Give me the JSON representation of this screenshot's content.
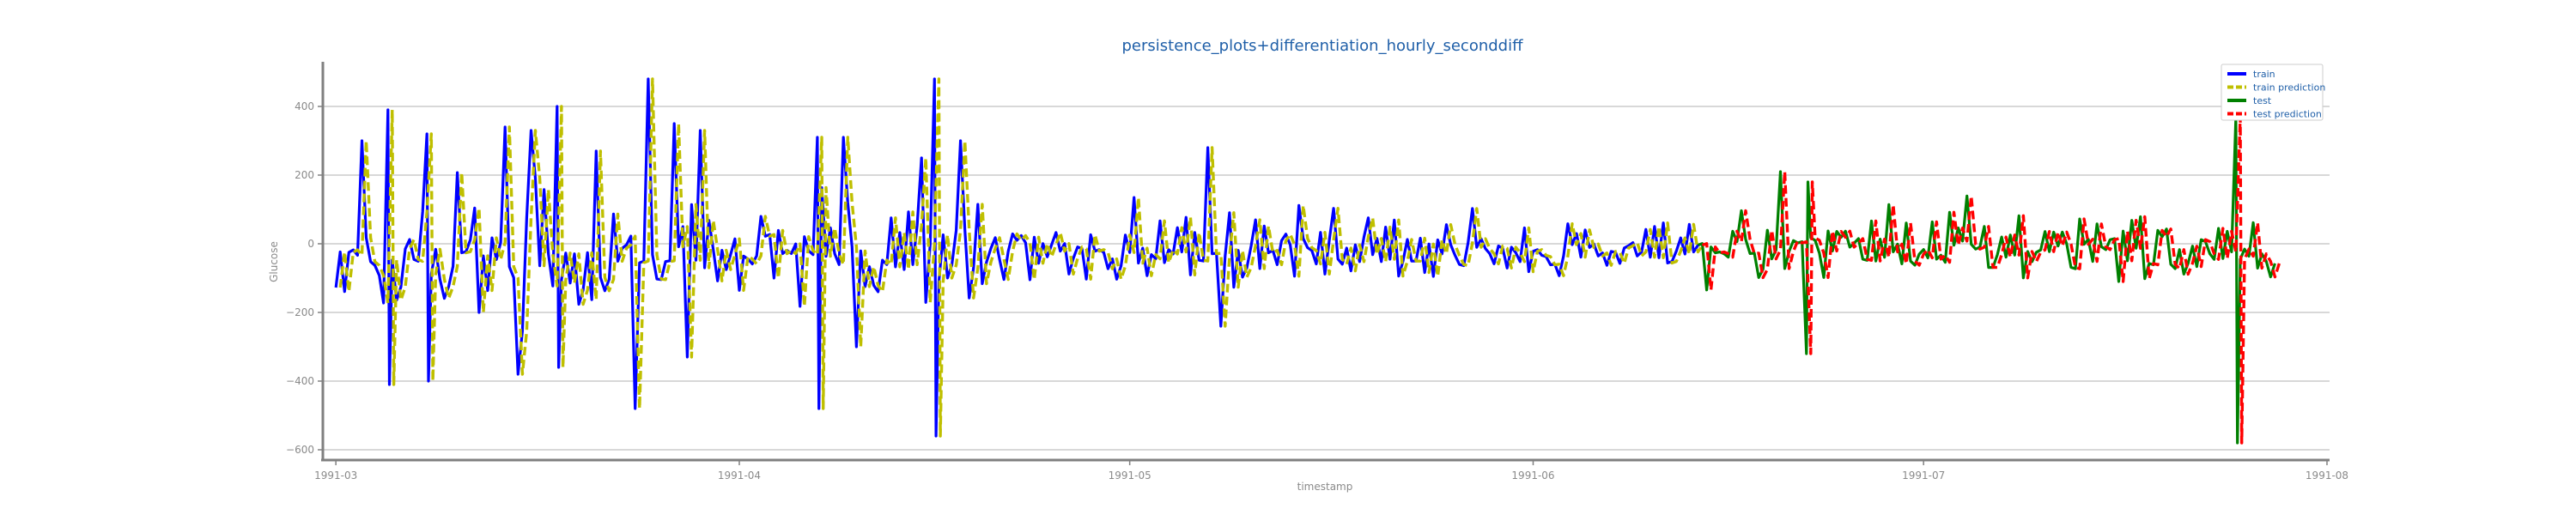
{
  "chart_data": {
    "type": "line",
    "title": "persistence_plots+differentiation_hourly_seconddiff",
    "xlabel": "timestamp",
    "ylabel": "Glucose",
    "x_ticks": [
      "1991-03",
      "1991-04",
      "1991-05",
      "1991-06",
      "1991-07",
      "1991-08"
    ],
    "x_range": [
      "1991-02-28",
      "1991-08-01"
    ],
    "ylim": [
      -630,
      530
    ],
    "y_ticks": [
      -600,
      -400,
      -200,
      0,
      200,
      400
    ],
    "grid": "horizontal",
    "legend_position": "top-right",
    "train_range": [
      "1991-03-01",
      "1991-06-14"
    ],
    "test_range": [
      "1991-06-14",
      "1991-07-28"
    ],
    "series": [
      {
        "name": "train",
        "color": "#0000ff",
        "style": "solid"
      },
      {
        "name": "train prediction",
        "color": "#bfbf00",
        "style": "dashed"
      },
      {
        "name": "test",
        "color": "#008000",
        "style": "solid"
      },
      {
        "name": "test prediction",
        "color": "#ff0000",
        "style": "dashed"
      }
    ],
    "spikes": [
      {
        "date": "1991-03-03",
        "value": 300
      },
      {
        "date": "1991-03-05",
        "value": 390
      },
      {
        "date": "1991-03-05",
        "value": -410
      },
      {
        "date": "1991-03-08",
        "value": 320
      },
      {
        "date": "1991-03-08",
        "value": -400
      },
      {
        "date": "1991-03-14",
        "value": 340
      },
      {
        "date": "1991-03-15",
        "value": -380
      },
      {
        "date": "1991-03-16",
        "value": 330
      },
      {
        "date": "1991-03-18",
        "value": 400
      },
      {
        "date": "1991-03-18",
        "value": -360
      },
      {
        "date": "1991-03-21",
        "value": 270
      },
      {
        "date": "1991-03-24",
        "value": -480
      },
      {
        "date": "1991-03-25",
        "value": 480
      },
      {
        "date": "1991-03-27",
        "value": 350
      },
      {
        "date": "1991-03-28",
        "value": -330
      },
      {
        "date": "1991-03-29",
        "value": 330
      },
      {
        "date": "1991-04-07",
        "value": 310
      },
      {
        "date": "1991-04-07",
        "value": -480
      },
      {
        "date": "1991-04-09",
        "value": 310
      },
      {
        "date": "1991-04-10",
        "value": -300
      },
      {
        "date": "1991-04-15",
        "value": 250
      },
      {
        "date": "1991-04-16",
        "value": 480
      },
      {
        "date": "1991-04-16",
        "value": -560
      },
      {
        "date": "1991-04-18",
        "value": 300
      },
      {
        "date": "1991-05-07",
        "value": 280
      },
      {
        "date": "1991-05-08",
        "value": -240
      },
      {
        "date": "1991-06-20",
        "value": 210
      },
      {
        "date": "1991-06-22",
        "value": -320
      },
      {
        "date": "1991-06-22",
        "value": 180
      },
      {
        "date": "1991-07-25",
        "value": 370
      },
      {
        "date": "1991-07-25",
        "value": -580
      }
    ]
  }
}
